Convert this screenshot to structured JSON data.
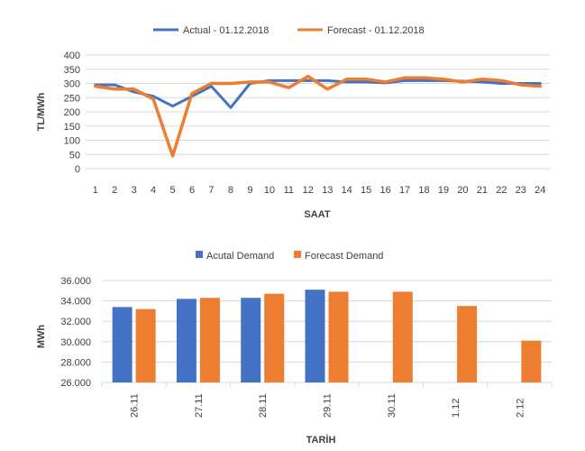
{
  "chart_data": [
    {
      "type": "line",
      "title": "",
      "xlabel": "SAAT",
      "ylabel": "TL/MWh",
      "ylim": [
        0,
        400
      ],
      "yticks": [
        0,
        50,
        100,
        150,
        200,
        250,
        300,
        350,
        400
      ],
      "grid": true,
      "legend": "top",
      "categories": [
        "1",
        "2",
        "3",
        "4",
        "5",
        "6",
        "7",
        "8",
        "9",
        "10",
        "11",
        "12",
        "13",
        "14",
        "15",
        "16",
        "17",
        "18",
        "19",
        "20",
        "21",
        "22",
        "23",
        "24"
      ],
      "series": [
        {
          "name": "Actual - 01.12.2018",
          "color": "#4472C4",
          "values": [
            295,
            295,
            270,
            255,
            220,
            255,
            290,
            215,
            300,
            310,
            310,
            310,
            310,
            305,
            305,
            302,
            310,
            310,
            310,
            308,
            305,
            300,
            300,
            300
          ]
        },
        {
          "name": "Forecast - 01.12.2018",
          "color": "#ED7D31",
          "values": [
            290,
            280,
            280,
            245,
            45,
            265,
            300,
            300,
            305,
            305,
            285,
            325,
            280,
            315,
            315,
            305,
            320,
            320,
            315,
            305,
            315,
            310,
            295,
            290
          ]
        }
      ]
    },
    {
      "type": "bar",
      "title": "",
      "xlabel": "TARİH",
      "ylabel": "MWh",
      "ylim": [
        26000,
        36000
      ],
      "yticks": [
        "26.000",
        "28.000",
        "30.000",
        "32.000",
        "34.000",
        "36.000"
      ],
      "grid": true,
      "legend": "top",
      "categories": [
        "26.11",
        "27.11",
        "28.11",
        "29.11",
        "30.11",
        "1.12",
        "2.12"
      ],
      "series": [
        {
          "name": "Acutal Demand",
          "color": "#4472C4",
          "values": [
            33400,
            34200,
            34300,
            35100,
            null,
            null,
            null
          ]
        },
        {
          "name": "Forecast Demand",
          "color": "#ED7D31",
          "values": [
            33200,
            34300,
            34700,
            34900,
            34900,
            33500,
            30100
          ]
        }
      ]
    }
  ]
}
